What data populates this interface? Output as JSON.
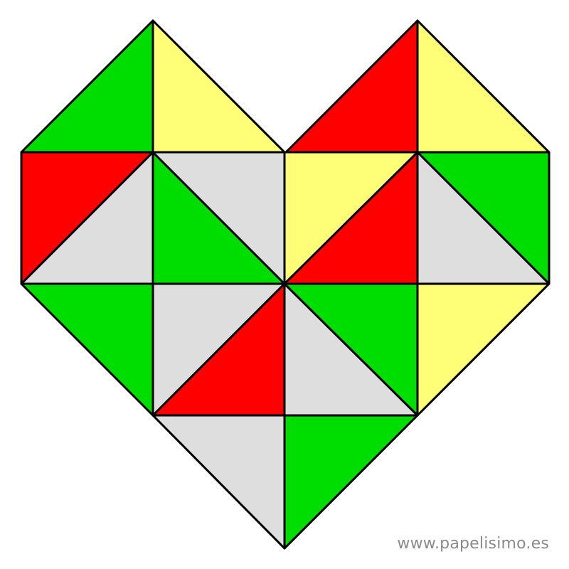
{
  "watermark": "www.papelisimo.es",
  "palette": {
    "green": "#00dd00",
    "yellow": "#ffff77",
    "red": "#ff0000",
    "gray": "#dedede",
    "outline": "#000000"
  },
  "tiles": [
    {
      "name": "tile-top-left-upper-left",
      "color": "green"
    },
    {
      "name": "tile-top-left-upper-right",
      "color": "yellow"
    },
    {
      "name": "tile-top-right-upper-left",
      "color": "red"
    },
    {
      "name": "tile-top-right-upper-right",
      "color": "yellow"
    },
    {
      "name": "tile-row2-col1-upper",
      "color": "red"
    },
    {
      "name": "tile-row2-col1-lower",
      "color": "gray"
    },
    {
      "name": "tile-row2-col2-lower-left",
      "color": "green"
    },
    {
      "name": "tile-row2-col2-upper-right",
      "color": "gray"
    },
    {
      "name": "tile-row2-col3-upper-left",
      "color": "yellow"
    },
    {
      "name": "tile-row2-col3-lower-right",
      "color": "red"
    },
    {
      "name": "tile-row2-col4-upper",
      "color": "green"
    },
    {
      "name": "tile-row2-col4-lower",
      "color": "gray"
    },
    {
      "name": "tile-row3-col1-upper-right",
      "color": "green"
    },
    {
      "name": "tile-row3-col2-upper",
      "color": "gray"
    },
    {
      "name": "tile-row3-col2-lower",
      "color": "red"
    },
    {
      "name": "tile-row3-col3-lower-left",
      "color": "gray"
    },
    {
      "name": "tile-row3-col3-upper-right",
      "color": "green"
    },
    {
      "name": "tile-row3-col4-upper-left",
      "color": "yellow"
    },
    {
      "name": "tile-bottom-left",
      "color": "gray"
    },
    {
      "name": "tile-bottom-right",
      "color": "green"
    }
  ]
}
